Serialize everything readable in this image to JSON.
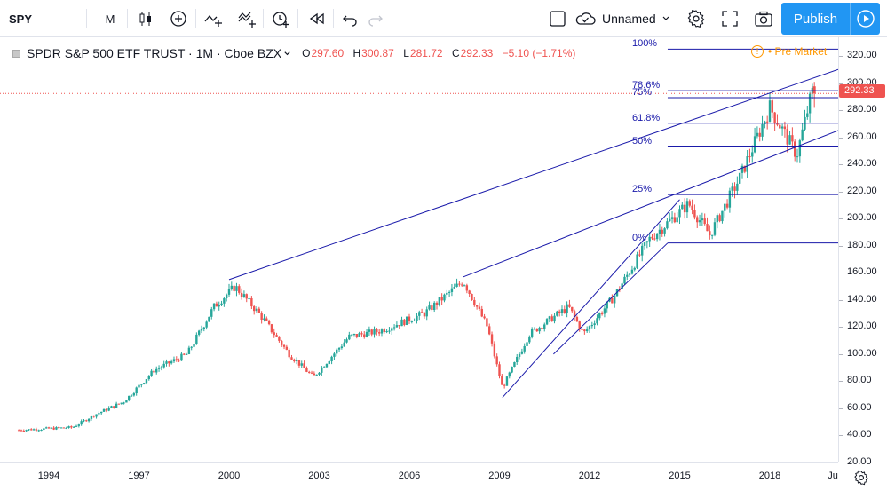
{
  "toolbar": {
    "symbol": "SPY",
    "interval": "M",
    "cloud_label": "Unnamed",
    "publish_label": "Publish"
  },
  "legend": {
    "title": "SPDR S&P 500 ETF TRUST · 1M · Cboe BZX",
    "o_label": "O",
    "o_value": "297.60",
    "h_label": "H",
    "h_value": "300.87",
    "l_label": "L",
    "l_value": "281.72",
    "c_label": "C",
    "c_value": "292.33",
    "change": "−5.10 (−1.71%)"
  },
  "premarket": {
    "icon": "!",
    "label": "• Pre Market"
  },
  "price_axis": {
    "ticks": [
      "320.00",
      "300.00",
      "280.00",
      "260.00",
      "240.00",
      "220.00",
      "200.00",
      "180.00",
      "160.00",
      "140.00",
      "120.00",
      "100.00",
      "80.00",
      "60.00",
      "40.00",
      "20.00"
    ]
  },
  "time_axis": {
    "ticks": [
      "1994",
      "1997",
      "2000",
      "2003",
      "2006",
      "2009",
      "2012",
      "2015",
      "2018",
      "Ju"
    ]
  },
  "last_price": "292.33",
  "fib_levels": [
    "100%",
    "78.6%",
    "75%",
    "61.8%",
    "50%",
    "25%",
    "0%"
  ],
  "colors": {
    "up": "#26a69a",
    "down": "#ef5350",
    "drawing": "#1a1aaa",
    "accent": "#2196f3"
  },
  "chart_data": {
    "type": "candlestick",
    "title": "SPDR S&P 500 ETF TRUST · 1M · Cboe BZX",
    "ylim": [
      20,
      320
    ],
    "x_ticks": [
      "1994",
      "1997",
      "2000",
      "2003",
      "2006",
      "2009",
      "2012",
      "2015",
      "2018"
    ],
    "series_anchor_points": [
      {
        "t": 1993.0,
        "v": 44
      },
      {
        "t": 1994.8,
        "v": 46
      },
      {
        "t": 1995.5,
        "v": 55
      },
      {
        "t": 1996.5,
        "v": 65
      },
      {
        "t": 1997.5,
        "v": 88
      },
      {
        "t": 1998.6,
        "v": 100
      },
      {
        "t": 1999.5,
        "v": 135
      },
      {
        "t": 2000.2,
        "v": 150
      },
      {
        "t": 2001.0,
        "v": 130
      },
      {
        "t": 2002.0,
        "v": 100
      },
      {
        "t": 2002.8,
        "v": 83
      },
      {
        "t": 2004.0,
        "v": 113
      },
      {
        "t": 2005.0,
        "v": 117
      },
      {
        "t": 2006.5,
        "v": 130
      },
      {
        "t": 2007.8,
        "v": 154
      },
      {
        "t": 2008.6,
        "v": 120
      },
      {
        "t": 2009.1,
        "v": 75
      },
      {
        "t": 2010.0,
        "v": 115
      },
      {
        "t": 2011.3,
        "v": 135
      },
      {
        "t": 2011.8,
        "v": 115
      },
      {
        "t": 2012.8,
        "v": 142
      },
      {
        "t": 2014.0,
        "v": 185
      },
      {
        "t": 2015.3,
        "v": 211
      },
      {
        "t": 2016.0,
        "v": 188
      },
      {
        "t": 2017.0,
        "v": 230
      },
      {
        "t": 2018.0,
        "v": 282
      },
      {
        "t": 2018.9,
        "v": 247
      },
      {
        "t": 2019.4,
        "v": 293
      }
    ],
    "fib_retracement": {
      "low": 182,
      "high": 325,
      "levels": [
        0,
        0.25,
        0.5,
        0.618,
        0.75,
        0.786,
        1
      ]
    },
    "last": {
      "open": 297.6,
      "high": 300.87,
      "low": 281.72,
      "close": 292.33
    }
  }
}
